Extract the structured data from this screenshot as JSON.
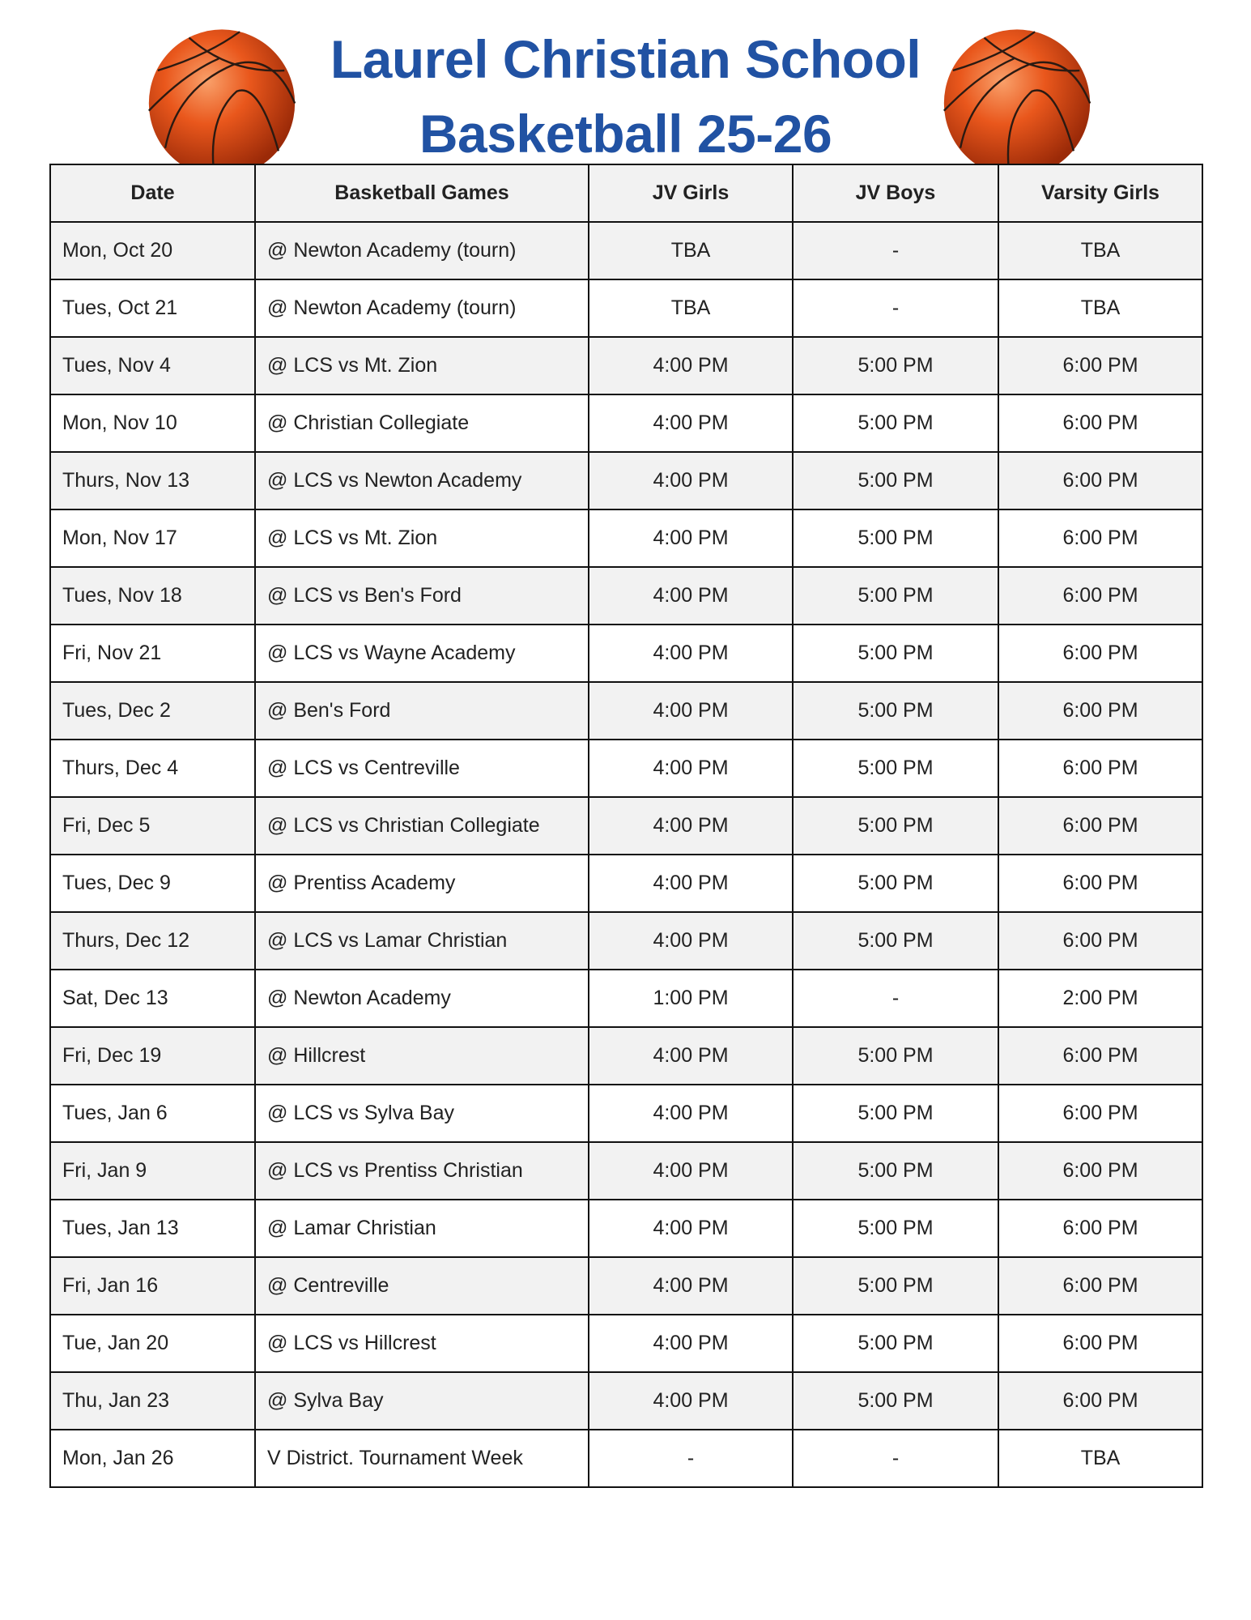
{
  "header": {
    "title_line1": "Laurel Christian School",
    "title_line2": "Basketball 25-26",
    "icon": "basketball-icon",
    "title_color": "#2152a3"
  },
  "table": {
    "columns": [
      "Date",
      "Basketball Games",
      "JV Girls",
      "JV Boys",
      "Varsity Girls"
    ],
    "rows": [
      [
        "Mon, Oct 20",
        "@ Newton Academy (tourn)",
        "TBA",
        "-",
        "TBA"
      ],
      [
        "Tues, Oct 21",
        "@ Newton Academy (tourn)",
        "TBA",
        "-",
        "TBA"
      ],
      [
        "Tues, Nov 4",
        "@ LCS vs Mt. Zion",
        "4:00 PM",
        "5:00 PM",
        "6:00 PM"
      ],
      [
        "Mon, Nov 10",
        "@ Christian Collegiate",
        "4:00 PM",
        "5:00 PM",
        "6:00 PM"
      ],
      [
        "Thurs, Nov 13",
        "@ LCS vs Newton Academy",
        "4:00 PM",
        "5:00 PM",
        "6:00 PM"
      ],
      [
        "Mon, Nov 17",
        "@ LCS vs Mt. Zion",
        "4:00 PM",
        "5:00 PM",
        "6:00 PM"
      ],
      [
        "Tues, Nov 18",
        "@ LCS vs Ben's Ford",
        "4:00 PM",
        "5:00 PM",
        "6:00 PM"
      ],
      [
        "Fri, Nov 21",
        "@ LCS vs Wayne Academy",
        "4:00 PM",
        "5:00 PM",
        "6:00 PM"
      ],
      [
        "Tues, Dec 2",
        "@ Ben's Ford",
        "4:00 PM",
        "5:00 PM",
        "6:00 PM"
      ],
      [
        "Thurs, Dec 4",
        "@ LCS vs Centreville",
        "4:00 PM",
        "5:00 PM",
        "6:00 PM"
      ],
      [
        "Fri, Dec 5",
        "@ LCS vs Christian Collegiate",
        "4:00 PM",
        "5:00 PM",
        "6:00 PM"
      ],
      [
        "Tues, Dec 9",
        "@ Prentiss Academy",
        "4:00 PM",
        "5:00 PM",
        "6:00 PM"
      ],
      [
        "Thurs, Dec 12",
        "@ LCS vs Lamar Christian",
        "4:00 PM",
        "5:00 PM",
        "6:00 PM"
      ],
      [
        "Sat, Dec 13",
        "@ Newton Academy",
        "1:00 PM",
        "-",
        "2:00 PM"
      ],
      [
        "Fri, Dec 19",
        "@ Hillcrest",
        "4:00 PM",
        "5:00 PM",
        "6:00 PM"
      ],
      [
        "Tues, Jan 6",
        "@ LCS vs Sylva Bay",
        "4:00 PM",
        "5:00 PM",
        "6:00 PM"
      ],
      [
        "Fri, Jan 9",
        "@ LCS vs Prentiss Christian",
        "4:00 PM",
        "5:00 PM",
        "6:00 PM"
      ],
      [
        "Tues, Jan 13",
        "@ Lamar Christian",
        "4:00 PM",
        "5:00 PM",
        "6:00 PM"
      ],
      [
        "Fri, Jan 16",
        "@ Centreville",
        "4:00 PM",
        "5:00 PM",
        "6:00 PM"
      ],
      [
        "Tue, Jan 20",
        "@ LCS vs Hillcrest",
        "4:00 PM",
        "5:00 PM",
        "6:00 PM"
      ],
      [
        "Thu, Jan 23",
        "@ Sylva Bay",
        "4:00 PM",
        "5:00 PM",
        "6:00 PM"
      ],
      [
        "Mon, Jan 26",
        "V District. Tournament Week",
        "-",
        "-",
        "TBA"
      ]
    ]
  }
}
